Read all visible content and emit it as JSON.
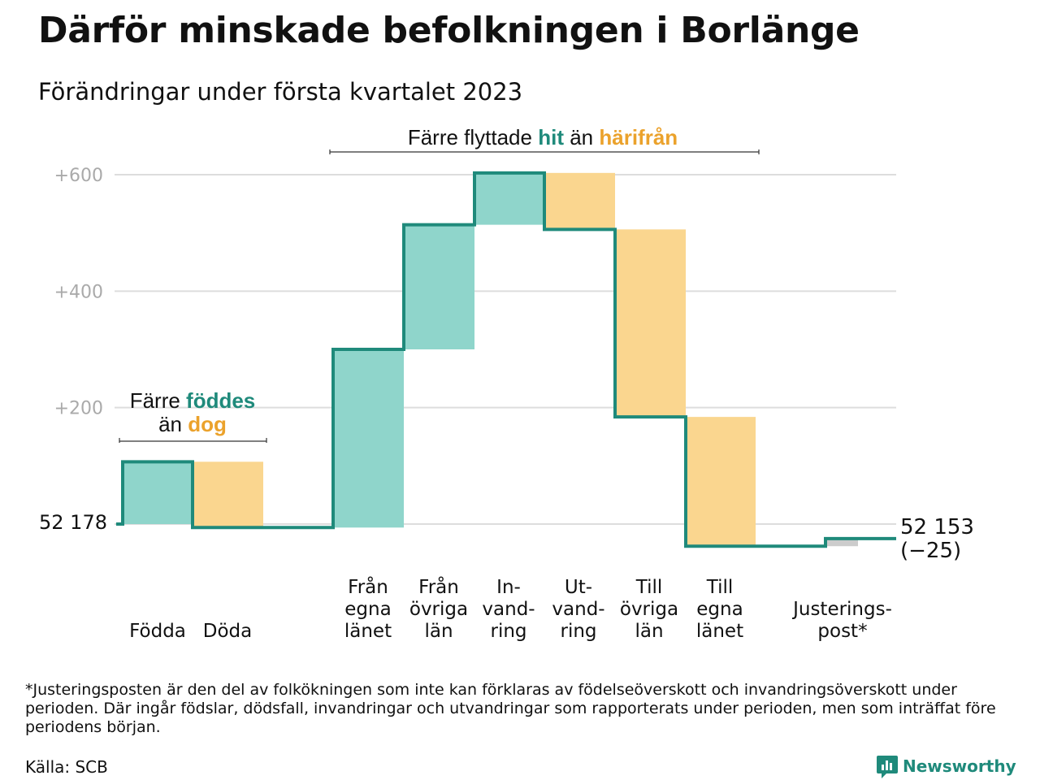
{
  "title": "Därför minskade befolkningen i Borlänge",
  "subtitle": "Förändringar under första kvartalet 2023",
  "chart_data": {
    "type": "waterfall",
    "start_value": 52178,
    "start_label": "52 178",
    "end_label": [
      "52 153",
      "(−25)"
    ],
    "yticks": [
      200,
      400,
      600
    ],
    "ytick_labels": [
      "+200",
      "+400",
      "+600"
    ],
    "ylim": [
      -60,
      650
    ],
    "grid": true,
    "steps": [
      {
        "label": [
          "Födda"
        ],
        "value": 107,
        "kind": "in"
      },
      {
        "label": [
          "Döda"
        ],
        "value": -113,
        "kind": "out"
      },
      {
        "label": [
          "Från",
          "egna",
          "länet"
        ],
        "value": 306,
        "kind": "in"
      },
      {
        "label": [
          "Från",
          "övriga",
          "län"
        ],
        "value": 214,
        "kind": "in"
      },
      {
        "label": [
          "In-",
          "vand-",
          "ring"
        ],
        "value": 89,
        "kind": "in"
      },
      {
        "label": [
          "Ut-",
          "vand-",
          "ring"
        ],
        "value": -97,
        "kind": "out"
      },
      {
        "label": [
          "Till",
          "övriga",
          "län"
        ],
        "value": -322,
        "kind": "out"
      },
      {
        "label": [
          "Till",
          "egna",
          "länet"
        ],
        "value": -222,
        "kind": "out"
      },
      {
        "label": [
          "Justerings-",
          "post*"
        ],
        "value": 13,
        "kind": "adj"
      }
    ],
    "annotations": [
      {
        "parts": [
          [
            "Färre ",
            "plain"
          ],
          [
            "föddes",
            "in"
          ]
        ],
        "parts2": [
          [
            "än ",
            "plain"
          ],
          [
            "dog",
            "out"
          ]
        ]
      },
      {
        "parts": [
          [
            "Färre flyttade ",
            "plain"
          ],
          [
            "hit",
            "in"
          ],
          [
            " än ",
            "plain"
          ],
          [
            "härifrån",
            "out"
          ]
        ]
      }
    ]
  },
  "colors": {
    "in": "#8fd5cb",
    "out": "#fad68f",
    "adj": "#cccccc",
    "line": "#1f8a7b",
    "in_text": "#1f8a7b",
    "out_text": "#eba22c",
    "grid": "#dddddd",
    "tick_text": "#aaaaaa"
  },
  "footnote": "*Justeringsposten är den del av folkökningen som inte kan förklaras av födelseöverskott och invandringsöverskott under perioden. Där ingår födslar, dödsfall, invandringar och utvandringar som rapporterats under perioden, men som inträffat före periodens början.",
  "source": "Källa: SCB",
  "logo": {
    "text": "Newsworthy",
    "icon": "bar-chart-icon"
  }
}
